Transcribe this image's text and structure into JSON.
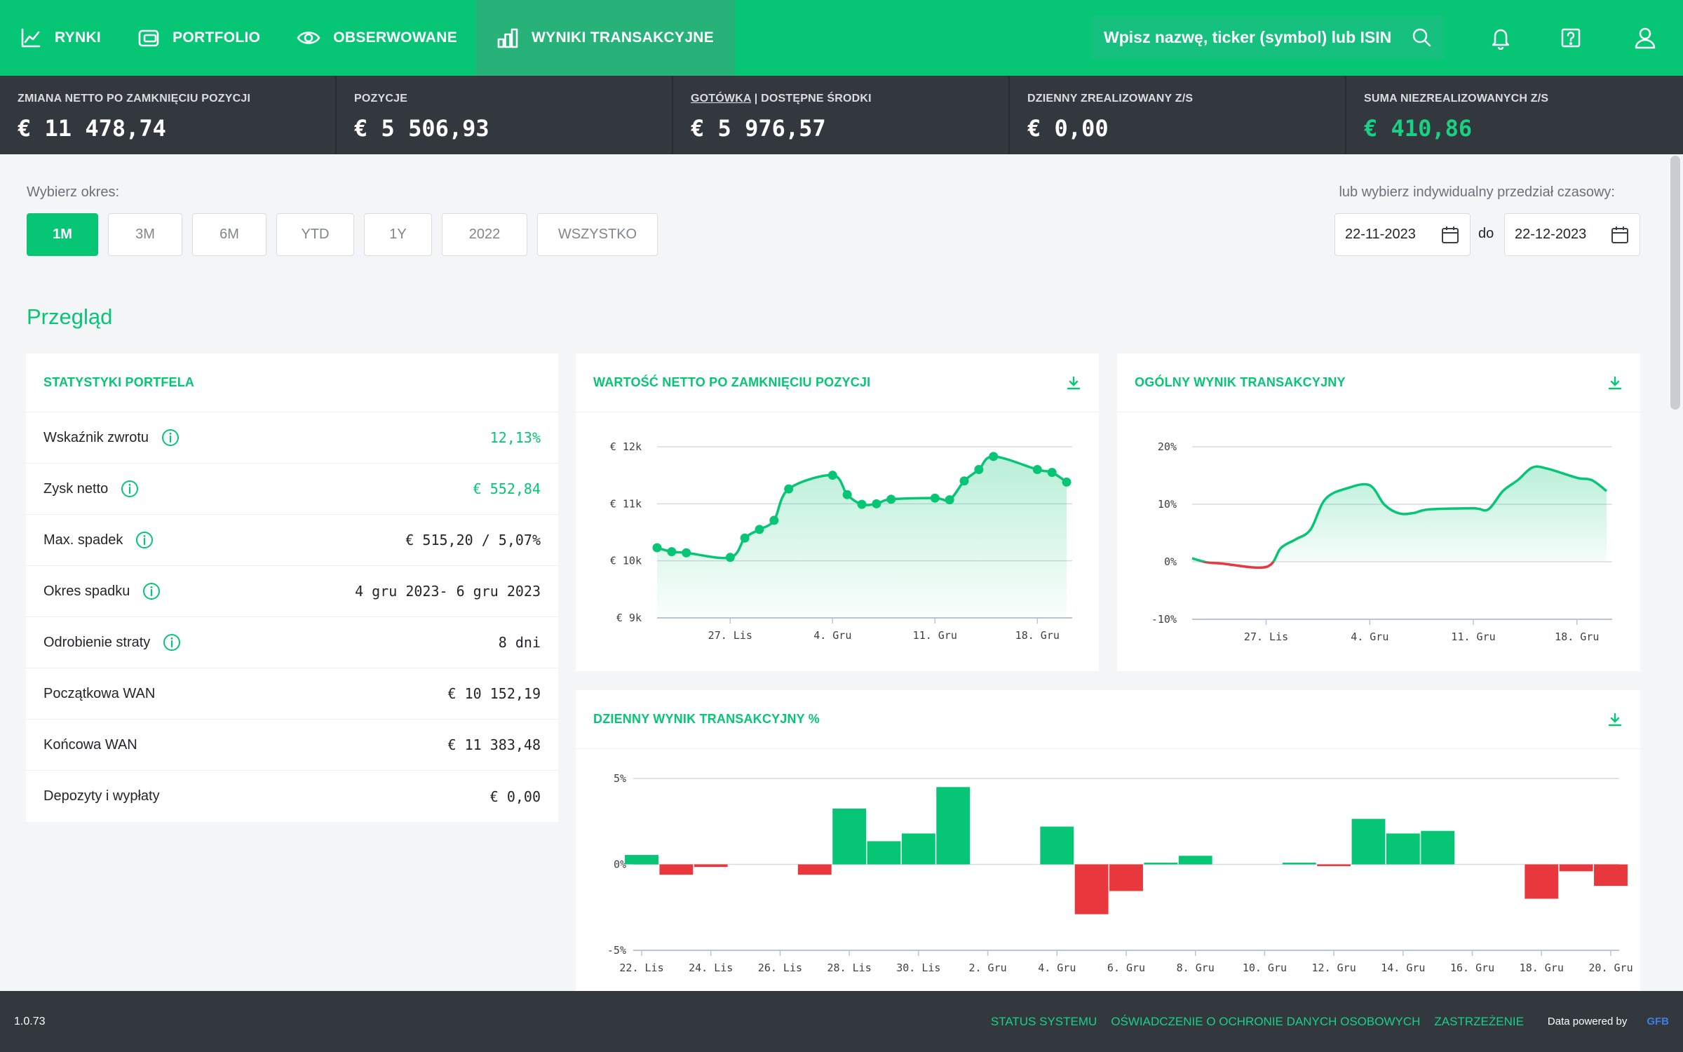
{
  "nav": {
    "items": [
      {
        "label": "RYNKI"
      },
      {
        "label": "PORTFOLIO"
      },
      {
        "label": "OBSERWOWANE"
      },
      {
        "label": "WYNIKI TRANSAKCYJNE"
      }
    ],
    "search_placeholder": "Wpisz nazwę, ticker (symbol) lub ISIN"
  },
  "summary": {
    "net_change": {
      "label": "ZMIANA NETTO PO ZAMKNIĘCIU POZYCJI",
      "value": "€ 11 478,74"
    },
    "positions": {
      "label": "POZYCJE",
      "value": "€ 5 506,93"
    },
    "cash": {
      "label_link": "GOTÓWKA",
      "label_rest": " | DOSTĘPNE ŚRODKI",
      "value": "€ 5 976,57"
    },
    "daily_realized": {
      "label": "DZIENNY ZREALIZOWANY Z/S",
      "value": "€ 0,00"
    },
    "unrealized": {
      "label": "SUMA NIEZREALIZOWANYCH Z/S",
      "value": "€ 410,86"
    }
  },
  "period": {
    "label": "Wybierz okres:",
    "buttons": [
      "1M",
      "3M",
      "6M",
      "YTD",
      "1Y",
      "2022",
      "WSZYSTKO"
    ],
    "active": "1M",
    "custom_label": "lub wybierz indywidualny przedział czasowy:",
    "date_from": "22-11-2023",
    "to_label": "do",
    "date_to": "22-12-2023"
  },
  "section_title": "Przegląd",
  "stats": {
    "title": "STATYSTYKI PORTFELA",
    "rows": [
      {
        "label": "Wskaźnik zwrotu",
        "value": "12,13%",
        "green": true,
        "info": true
      },
      {
        "label": "Zysk netto",
        "value": "€ 552,84",
        "green": true,
        "info": true
      },
      {
        "label": "Max. spadek",
        "value": "€ 515,20 / 5,07%",
        "green": false,
        "info": true
      },
      {
        "label": "Okres spadku",
        "value": "4 gru 2023- 6 gru 2023",
        "green": false,
        "info": true
      },
      {
        "label": "Odrobienie straty",
        "value": "8 dni",
        "green": false,
        "info": true
      },
      {
        "label": "Początkowa WAN",
        "value": "€ 10 152,19",
        "green": false,
        "info": false
      },
      {
        "label": "Końcowa WAN",
        "value": "€ 11 383,48",
        "green": false,
        "info": false
      },
      {
        "label": "Depozyty i wypłaty",
        "value": "€ 0,00",
        "green": false,
        "info": false
      }
    ]
  },
  "chart_data": [
    {
      "type": "line",
      "title": "WARTOŚĆ NETTO PO ZAMKNIĘCIU POZYCJI",
      "y_ticks": [
        "€ 12k",
        "€ 11k",
        "€ 10k",
        "€ 9k"
      ],
      "ylim": [
        9000,
        12000
      ],
      "x_tick_labels": [
        "27. Lis",
        "4. Gru",
        "11. Gru",
        "18. Gru"
      ],
      "x_tick_days": [
        5,
        12,
        19,
        26
      ],
      "x_range_days": [
        0,
        28
      ],
      "color": "#06c676",
      "points": [
        {
          "x": 0,
          "y": 10230
        },
        {
          "x": 1,
          "y": 10160
        },
        {
          "x": 2,
          "y": 10140
        },
        {
          "x": 5,
          "y": 10060
        },
        {
          "x": 6,
          "y": 10400
        },
        {
          "x": 7,
          "y": 10550
        },
        {
          "x": 8,
          "y": 10710
        },
        {
          "x": 9,
          "y": 11260
        },
        {
          "x": 12,
          "y": 11500
        },
        {
          "x": 13,
          "y": 11160
        },
        {
          "x": 14,
          "y": 10990
        },
        {
          "x": 15,
          "y": 11000
        },
        {
          "x": 16,
          "y": 11080
        },
        {
          "x": 19,
          "y": 11100
        },
        {
          "x": 20,
          "y": 11070
        },
        {
          "x": 21,
          "y": 11400
        },
        {
          "x": 22,
          "y": 11600
        },
        {
          "x": 23,
          "y": 11830
        },
        {
          "x": 26,
          "y": 11600
        },
        {
          "x": 27,
          "y": 11550
        },
        {
          "x": 28,
          "y": 11380
        }
      ],
      "grid": true
    },
    {
      "type": "line",
      "title": "OGÓLNY WYNIK TRANSAKCYJNY",
      "y_ticks": [
        "20%",
        "10%",
        "0%",
        "-10%"
      ],
      "ylim": [
        -10,
        20
      ],
      "x_tick_labels": [
        "27. Lis",
        "4. Gru",
        "11. Gru",
        "18. Gru"
      ],
      "x_tick_days": [
        5,
        12,
        19,
        26
      ],
      "x_range_days": [
        0,
        28
      ],
      "positive_color": "#06c676",
      "negative_color": "#e8383d",
      "points": [
        {
          "x": 0,
          "y": 0.6
        },
        {
          "x": 1,
          "y": -0.1
        },
        {
          "x": 2,
          "y": -0.3
        },
        {
          "x": 5,
          "y": -0.9
        },
        {
          "x": 6,
          "y": 2.4
        },
        {
          "x": 7,
          "y": 3.9
        },
        {
          "x": 8,
          "y": 5.6
        },
        {
          "x": 9,
          "y": 10.9
        },
        {
          "x": 10.5,
          "y": 12.8
        },
        {
          "x": 12,
          "y": 13.3
        },
        {
          "x": 13,
          "y": 9.9
        },
        {
          "x": 14,
          "y": 8.4
        },
        {
          "x": 15,
          "y": 8.5
        },
        {
          "x": 16,
          "y": 9.1
        },
        {
          "x": 19,
          "y": 9.3
        },
        {
          "x": 20,
          "y": 9.1
        },
        {
          "x": 21,
          "y": 12.3
        },
        {
          "x": 22,
          "y": 14.2
        },
        {
          "x": 23,
          "y": 16.4
        },
        {
          "x": 24,
          "y": 16.2
        },
        {
          "x": 26,
          "y": 14.6
        },
        {
          "x": 27,
          "y": 14.2
        },
        {
          "x": 28,
          "y": 12.3
        }
      ],
      "grid": true
    },
    {
      "type": "bar",
      "title": "DZIENNY WYNIK TRANSAKCYJNY %",
      "y_ticks": [
        "5%",
        "0%",
        "-5%"
      ],
      "ylim": [
        -5,
        5
      ],
      "x_tick_labels": [
        "22. Lis",
        "24. Lis",
        "26. Lis",
        "28. Lis",
        "30. Lis",
        "2. Gru",
        "4. Gru",
        "6. Gru",
        "8. Gru",
        "10. Gru",
        "12. Gru",
        "14. Gru",
        "16. Gru",
        "18. Gru",
        "20. Gru"
      ],
      "days": [
        "22. Lis",
        "23. Lis",
        "24. Lis",
        "25. Lis",
        "26. Lis",
        "27. Lis",
        "28. Lis",
        "29. Lis",
        "30. Lis",
        "1. Gru",
        "2. Gru",
        "3. Gru",
        "4. Gru",
        "5. Gru",
        "6. Gru",
        "7. Gru",
        "8. Gru",
        "9. Gru",
        "10. Gru",
        "11. Gru",
        "12. Gru",
        "13. Gru",
        "14. Gru",
        "15. Gru",
        "16. Gru",
        "17. Gru",
        "18. Gru",
        "19. Gru",
        "20. Gru"
      ],
      "values": [
        0.55,
        -0.6,
        -0.15,
        0,
        0,
        -0.6,
        3.25,
        1.35,
        1.8,
        4.5,
        0,
        0,
        2.2,
        -2.9,
        -1.55,
        0.1,
        0.5,
        0,
        0,
        0.1,
        -0.1,
        2.65,
        1.8,
        1.95,
        0,
        0,
        -2.0,
        -0.4,
        -1.25
      ],
      "positive_color": "#06c676",
      "negative_color": "#e8383d",
      "grid": true
    }
  ],
  "footer": {
    "version": "1.0.73",
    "links": [
      "STATUS SYSTEMU",
      "OŚWIADCZENIE O OCHRONIE DANYCH OSOBOWYCH",
      "ZASTRZEŻENIE"
    ],
    "powered_by": "Data powered by",
    "brand": "GFB"
  },
  "colors": {
    "brand_green": "#06c676",
    "dark_bar": "#33383e",
    "negative_red": "#e8383d"
  }
}
